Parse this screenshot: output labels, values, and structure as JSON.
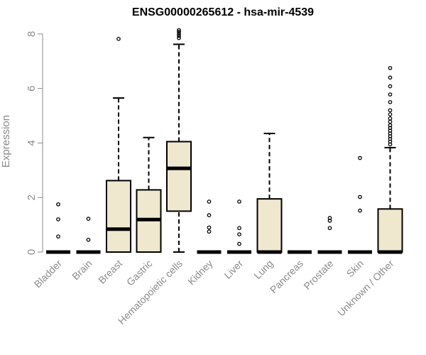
{
  "chart_data": {
    "type": "boxplot",
    "title": "ENSG00000265612 - hsa-mir-4539",
    "ylabel": "Expression",
    "xlabel": "",
    "ylim": [
      0,
      8.2
    ],
    "yticks": [
      0,
      2,
      4,
      6,
      8
    ],
    "grid": false,
    "box_color": "#efe8cf",
    "categories": [
      "Bladder",
      "Brain",
      "Breast",
      "Gastric",
      "Hematopoietic cells",
      "Kidney",
      "Liver",
      "Lung",
      "Pancreas",
      "Prostate",
      "Skin",
      "Unknown / Other"
    ],
    "boxes": [
      {
        "q1": 0,
        "median": 0,
        "q3": 0,
        "whislo": 0,
        "whishi": 0,
        "fliers": [
          0.57,
          1.2,
          1.75
        ]
      },
      {
        "q1": 0,
        "median": 0,
        "q3": 0,
        "whislo": 0,
        "whishi": 0,
        "fliers": [
          0.45,
          1.22
        ]
      },
      {
        "q1": 0,
        "median": 0.84,
        "q3": 2.62,
        "whislo": 0,
        "whishi": 5.65,
        "fliers": [
          7.82
        ]
      },
      {
        "q1": 0,
        "median": 1.19,
        "q3": 2.28,
        "whislo": 0,
        "whishi": 4.2,
        "fliers": []
      },
      {
        "q1": 1.5,
        "median": 3.07,
        "q3": 4.05,
        "whislo": 0,
        "whishi": 7.62,
        "fliers": [
          7.85,
          7.93,
          8.0,
          8.08,
          8.14
        ]
      },
      {
        "q1": 0,
        "median": 0,
        "q3": 0,
        "whislo": 0,
        "whishi": 0,
        "fliers": [
          0.75,
          0.9,
          1.35,
          1.85
        ]
      },
      {
        "q1": 0,
        "median": 0,
        "q3": 0,
        "whislo": 0,
        "whishi": 0,
        "fliers": [
          0.3,
          0.65,
          0.88,
          1.85
        ]
      },
      {
        "q1": 0,
        "median": 0,
        "q3": 1.95,
        "whislo": 0,
        "whishi": 4.35,
        "fliers": []
      },
      {
        "q1": 0,
        "median": 0,
        "q3": 0,
        "whislo": 0,
        "whishi": 0,
        "fliers": []
      },
      {
        "q1": 0,
        "median": 0,
        "q3": 0,
        "whislo": 0,
        "whishi": 0,
        "fliers": [
          0.88,
          1.15,
          1.25
        ]
      },
      {
        "q1": 0,
        "median": 0,
        "q3": 0,
        "whislo": 0,
        "whishi": 0,
        "fliers": [
          1.52,
          2.02,
          3.45
        ]
      },
      {
        "q1": 0,
        "median": 0,
        "q3": 1.58,
        "whislo": 0,
        "whishi": 3.83,
        "fliers": [
          3.95,
          4.05,
          4.15,
          4.25,
          4.35,
          4.45,
          4.55,
          4.65,
          4.78,
          4.9,
          5.05,
          5.2,
          5.5,
          5.78,
          6.08,
          6.4,
          6.75
        ]
      }
    ]
  }
}
